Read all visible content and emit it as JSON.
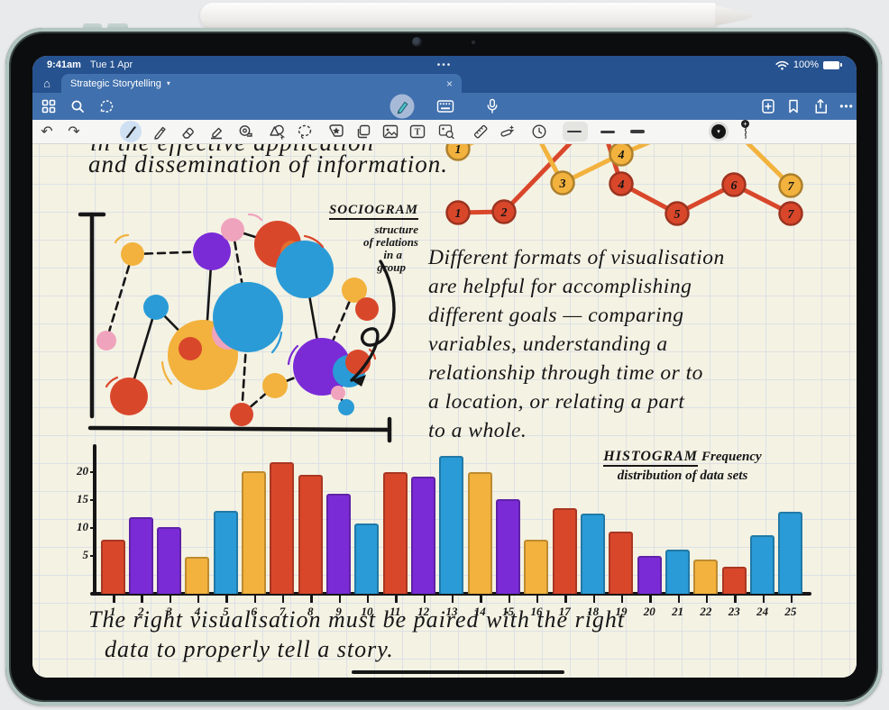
{
  "status": {
    "time": "9:41am",
    "date": "Tue 1 Apr",
    "dots": "•••",
    "battery_pct": "100%"
  },
  "tab": {
    "title": "Strategic Storytelling",
    "chevron": "▾",
    "close": "×",
    "home_icon": "⌂"
  },
  "toolbar_icons": [
    "grid-icon",
    "search-icon",
    "ask-ai-icon",
    "pen-mode-icon",
    "keyboard-icon",
    "microphone-icon",
    "add-page-icon",
    "bookmark-icon",
    "share-icon",
    "more-icon"
  ],
  "tools_icons": [
    "undo-icon",
    "redo-icon",
    "fountain-pen-icon",
    "pencil-icon",
    "eraser-icon",
    "highlighter-icon",
    "tape-icon",
    "shapes-icon",
    "lasso-icon",
    "sticker-icon",
    "pages-icon",
    "image-icon",
    "text-icon",
    "image-search-icon",
    "ruler-icon",
    "ai-pen-icon",
    "clock-icon",
    "thickness-thin",
    "thickness-medium",
    "thickness-thick",
    "color-red",
    "color-blue",
    "color-black",
    "add-color-icon"
  ],
  "glyphs": {
    "undo": "↶",
    "redo": "↷",
    "more": "•••",
    "chevron_black": "▾",
    "plus": "+"
  },
  "canvas": {
    "line1": "in the effective application",
    "line2": "and dissemination of information.",
    "paragraph_lines": [
      "Different formats of visualisation",
      "are helpful for accomplishing",
      "different goals — comparing",
      "variables, understanding a",
      "relationship through time or to",
      "a location, or relating a part",
      "to a whole."
    ],
    "bottom_line1": "The right visualisation must be paired with the right",
    "bottom_line2": "data to properly tell a story.",
    "sociogram_label": {
      "title": "SOCIOGRAM",
      "sub1": "structure",
      "sub2": "of relations",
      "sub3": "in a",
      "sub4": "group"
    },
    "histogram_label": {
      "title": "HISTOGRAM",
      "freq": "Frequency",
      "subtitle": "distribution of data sets"
    }
  },
  "palette": {
    "red": "#d9472b",
    "yellow": "#f2b23d",
    "purple": "#7a2bd6",
    "blue": "#2a9bd6",
    "pink": "#f0a3bd",
    "ink": "#161617"
  },
  "chart_data": [
    {
      "type": "line",
      "title": "hand-drawn two-series line chart with numbered points (cropped at top by toolbar)",
      "series": [
        {
          "name": "red",
          "color": "#d9472b",
          "points": [
            {
              "label": "1",
              "x": 42,
              "y": 82
            },
            {
              "label": "2",
              "x": 93,
              "y": 81
            },
            {
              "x": 198,
              "y": -28
            },
            {
              "label": "4",
              "x": 223,
              "y": 50
            },
            {
              "label": "5",
              "x": 285,
              "y": 83
            },
            {
              "label": "6",
              "x": 348,
              "y": 51
            },
            {
              "label": "7",
              "x": 411,
              "y": 83
            }
          ]
        },
        {
          "name": "yellow",
          "color": "#f2b23d",
          "points": [
            {
              "label": "1",
              "x": 42,
              "y": 11
            },
            {
              "x": 120,
              "y": -22
            },
            {
              "label": "3",
              "x": 158,
              "y": 49
            },
            {
              "label": "4",
              "x": 223,
              "y": 17
            },
            {
              "x": 330,
              "y": -28
            },
            {
              "label": "7",
              "x": 411,
              "y": 52
            }
          ]
        }
      ]
    },
    {
      "type": "bar",
      "title": "HISTOGRAM",
      "subtitle": "Frequency distribution of data sets",
      "categories": [
        "1",
        "2",
        "3",
        "4",
        "5",
        "6",
        "7",
        "8",
        "9",
        "10",
        "11",
        "12",
        "13",
        "14",
        "15",
        "16",
        "17",
        "18",
        "19",
        "20",
        "21",
        "22",
        "23",
        "24",
        "25"
      ],
      "values": [
        8,
        12,
        10,
        5,
        13,
        20,
        22,
        19.5,
        16,
        11,
        20,
        19,
        23,
        20,
        15,
        8,
        13.5,
        12.5,
        9.5,
        5,
        6,
        4.5,
        3,
        8.5,
        13
      ],
      "colors": [
        "red",
        "purple",
        "purple",
        "yellow",
        "blue",
        "yellow",
        "red",
        "red",
        "purple",
        "blue",
        "red",
        "purple",
        "blue",
        "yellow",
        "purple",
        "yellow",
        "red",
        "blue",
        "red",
        "purple",
        "blue",
        "yellow",
        "red",
        "blue",
        "blue"
      ],
      "yticks": [
        5,
        10,
        15,
        20
      ],
      "ylim": [
        0,
        24
      ],
      "grid": false,
      "legend": "none"
    }
  ]
}
